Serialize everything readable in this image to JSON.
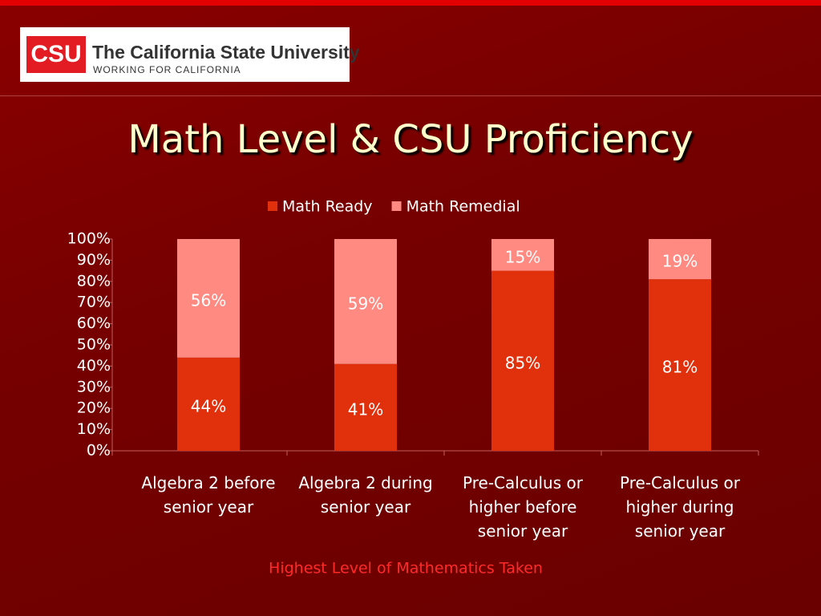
{
  "header": {
    "logo_mark": "CSU",
    "logo_name": "The California State University",
    "logo_tagline": "WORKING FOR CALIFORNIA"
  },
  "chart_data": {
    "type": "stacked_bar",
    "title": "Math Level & CSU Proficiency",
    "x_label": "Highest Level of Mathematics Taken",
    "categories": [
      "Algebra 2 before senior year",
      "Algebra 2 during senior year",
      "Pre-Calculus or higher before senior year",
      "Pre-Calculus or higher during senior year"
    ],
    "series": [
      {
        "name": "Math Ready",
        "color": "#e1300c",
        "values": [
          44,
          41,
          85,
          81
        ],
        "value_labels": [
          "44%",
          "41%",
          "85%",
          "81%"
        ]
      },
      {
        "name": "Math Remedial",
        "color": "#ff8a82",
        "values": [
          56,
          59,
          15,
          19
        ],
        "value_labels": [
          "56%",
          "59%",
          "15%",
          "19%"
        ]
      }
    ],
    "ylim": [
      0,
      100
    ],
    "yticks": [
      {
        "value": 0,
        "label": "0%"
      },
      {
        "value": 10,
        "label": "10%"
      },
      {
        "value": 20,
        "label": "20%"
      },
      {
        "value": 30,
        "label": "30%"
      },
      {
        "value": 40,
        "label": "40%"
      },
      {
        "value": 50,
        "label": "50%"
      },
      {
        "value": 60,
        "label": "60%"
      },
      {
        "value": 70,
        "label": "70%"
      },
      {
        "value": 80,
        "label": "80%"
      },
      {
        "value": 90,
        "label": "90%"
      },
      {
        "value": 100,
        "label": "100%"
      }
    ],
    "legend": "top"
  }
}
